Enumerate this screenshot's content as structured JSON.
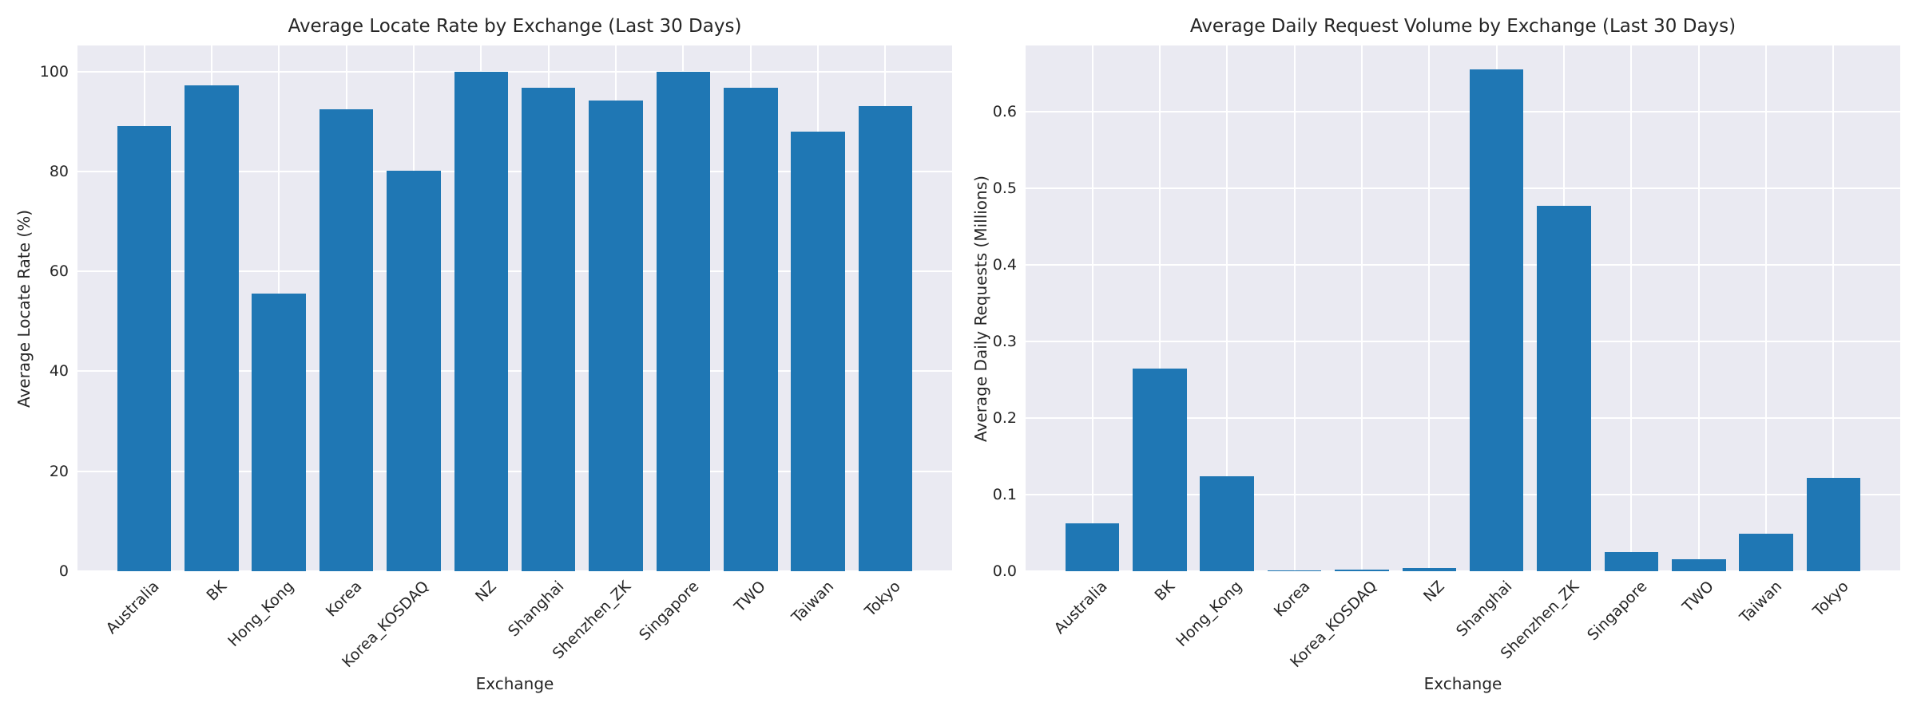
{
  "style": {
    "bar_color": "#1f77b4",
    "plot_background": "#eaeaf2",
    "grid_color": "#ffffff",
    "text_color": "#262626",
    "page_background": "#ffffff"
  },
  "chart_data": [
    {
      "type": "bar",
      "title": "Average Locate Rate by Exchange (Last 30 Days)",
      "xlabel": "Exchange",
      "ylabel": "Average Locate Rate (%)",
      "categories": [
        "Australia",
        "BK",
        "Hong_Kong",
        "Korea",
        "Korea_KOSDAQ",
        "NZ",
        "Shanghai",
        "Shenzhen_ZK",
        "Singapore",
        "TWO",
        "Taiwan",
        "Tokyo"
      ],
      "values": [
        89.1,
        97.2,
        55.5,
        92.4,
        80.2,
        100,
        96.8,
        94.2,
        100,
        96.8,
        88,
        93
      ],
      "ylim": [
        0,
        105.2
      ],
      "yticks": [
        0,
        20,
        40,
        60,
        80,
        100
      ],
      "ytick_labels": [
        "0",
        "20",
        "40",
        "60",
        "80",
        "100"
      ],
      "grid": true,
      "legend": "none",
      "x_tick_rotation_deg": 45
    },
    {
      "type": "bar",
      "title": "Average Daily Request Volume by Exchange (Last 30 Days)",
      "xlabel": "Exchange",
      "ylabel": "Average Daily Requests (Millions)",
      "categories": [
        "Australia",
        "BK",
        "Hong_Kong",
        "Korea",
        "Korea_KOSDAQ",
        "NZ",
        "Shanghai",
        "Shenzhen_ZK",
        "Singapore",
        "TWO",
        "Taiwan",
        "Tokyo"
      ],
      "values": [
        0.062,
        0.265,
        0.124,
        0.0015,
        0.002,
        0.004,
        0.655,
        0.477,
        0.025,
        0.016,
        0.049,
        0.122
      ],
      "ylim": [
        0,
        0.6865
      ],
      "yticks": [
        0.0,
        0.1,
        0.2,
        0.3,
        0.4,
        0.5,
        0.6
      ],
      "ytick_labels": [
        "0.0",
        "0.1",
        "0.2",
        "0.3",
        "0.4",
        "0.5",
        "0.6"
      ],
      "grid": true,
      "legend": "none",
      "x_tick_rotation_deg": 45
    }
  ]
}
